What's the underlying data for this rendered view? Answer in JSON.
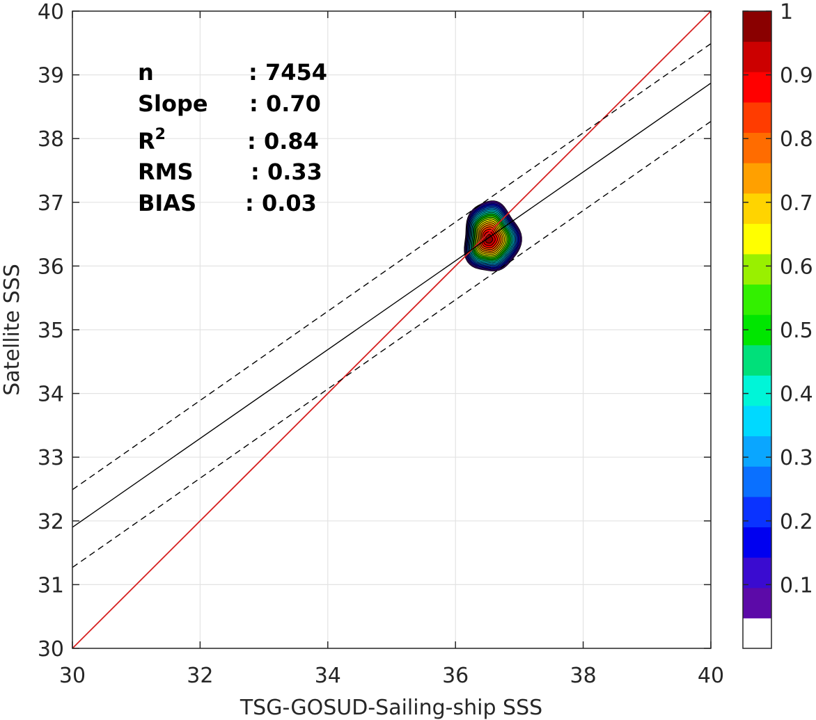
{
  "chart_data": {
    "type": "contour",
    "xlabel": "TSG-GOSUD-Sailing-ship SSS",
    "ylabel": "Satellite SSS",
    "xlim": [
      30,
      40
    ],
    "ylim": [
      30,
      40
    ],
    "xticks": [
      30,
      32,
      34,
      36,
      38,
      40
    ],
    "yticks": [
      30,
      31,
      32,
      33,
      34,
      35,
      36,
      37,
      38,
      39,
      40
    ],
    "grid": true,
    "stats": [
      {
        "label": "n",
        "value": ": 7454"
      },
      {
        "label": "Slope",
        "value": ": 0.70"
      },
      {
        "label": "R",
        "sup": "2",
        "value": ": 0.84"
      },
      {
        "label": "RMS",
        "value": ": 0.33"
      },
      {
        "label": "BIAS",
        "value": ": 0.03"
      }
    ],
    "lines": [
      {
        "role": "identity",
        "style": "solid",
        "color": "#d62020",
        "points": [
          [
            30,
            30
          ],
          [
            40,
            40
          ]
        ]
      },
      {
        "role": "regression",
        "style": "solid",
        "color": "#000000",
        "points": [
          [
            30,
            31.9
          ],
          [
            40,
            38.87
          ]
        ]
      },
      {
        "role": "upper-bound",
        "style": "dashed",
        "color": "#000000",
        "points": [
          [
            30,
            32.49
          ],
          [
            40,
            39.49
          ]
        ]
      },
      {
        "role": "lower-bound",
        "style": "dashed",
        "color": "#000000",
        "points": [
          [
            30,
            31.27
          ],
          [
            40,
            38.27
          ]
        ]
      }
    ],
    "density": {
      "center": [
        36.52,
        36.42
      ],
      "extent_x": [
        36.12,
        37.0
      ],
      "extent_y": [
        35.9,
        37.0
      ],
      "levels": [
        0.05,
        0.1,
        0.15,
        0.2,
        0.25,
        0.3,
        0.35,
        0.4,
        0.45,
        0.5,
        0.55,
        0.6,
        0.65,
        0.7,
        0.75,
        0.8,
        0.85,
        0.9,
        0.95,
        1.0
      ]
    },
    "colorbar": {
      "range": [
        0,
        1
      ],
      "ticks": [
        "0.1",
        "0.2",
        "0.3",
        "0.4",
        "0.5",
        "0.6",
        "0.7",
        "0.8",
        "0.9",
        "1"
      ],
      "colors": [
        "#ffffff",
        "#5c0aa8",
        "#3a0bd0",
        "#0000f0",
        "#0a33ff",
        "#0a70ff",
        "#0aa6ff",
        "#00d9ff",
        "#00f5d8",
        "#00e07a",
        "#00e600",
        "#33f000",
        "#99f000",
        "#ffff00",
        "#ffd400",
        "#ffa000",
        "#ff6c00",
        "#ff3c00",
        "#ff0000",
        "#cc0000",
        "#8a0000"
      ]
    }
  }
}
